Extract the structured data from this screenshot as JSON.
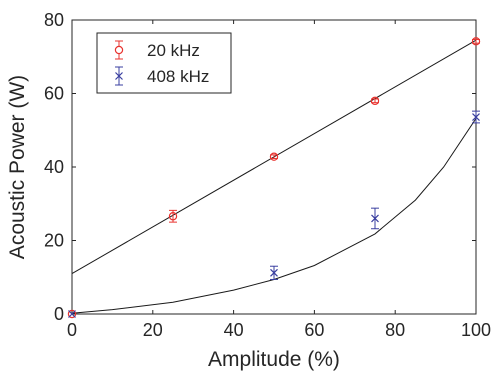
{
  "chart_data": {
    "type": "scatter",
    "title": "",
    "xlabel": "Amplitude (%)",
    "ylabel": "Acoustic Power (W)",
    "xlim": [
      0,
      100
    ],
    "ylim": [
      0,
      80
    ],
    "xticks": [
      0,
      20,
      40,
      60,
      80,
      100
    ],
    "yticks": [
      0,
      20,
      40,
      60,
      80
    ],
    "grid": false,
    "legend": "top-left",
    "series": [
      {
        "name": "20 kHz",
        "marker": "circle",
        "color": "#e8332f",
        "errorbar_color": "#e8332f",
        "x": [
          0,
          25,
          50,
          75,
          100
        ],
        "y": [
          0,
          26.6,
          42.8,
          58,
          74.2
        ],
        "yerr": [
          0,
          1.6,
          0.5,
          0.5,
          0.5
        ],
        "fit": {
          "kind": "linear",
          "points": [
            [
              0,
              11
            ],
            [
              100,
              74.5
            ]
          ]
        }
      },
      {
        "name": "408 kHz",
        "marker": "x",
        "color": "#3a3fa0",
        "errorbar_color": "#3a3fa0",
        "x": [
          0,
          50,
          75,
          100
        ],
        "y": [
          0,
          11.2,
          26,
          53.6
        ],
        "yerr": [
          0,
          1.8,
          2.8,
          1.6
        ],
        "fit": {
          "kind": "curve",
          "points": [
            [
              0,
              0.2
            ],
            [
              10,
              1.2
            ],
            [
              25,
              3.2
            ],
            [
              40,
              6.5
            ],
            [
              50,
              9.4
            ],
            [
              60,
              13.2
            ],
            [
              75,
              21.8
            ],
            [
              85,
              31
            ],
            [
              92,
              40
            ],
            [
              100,
              53.2
            ]
          ]
        }
      }
    ]
  }
}
